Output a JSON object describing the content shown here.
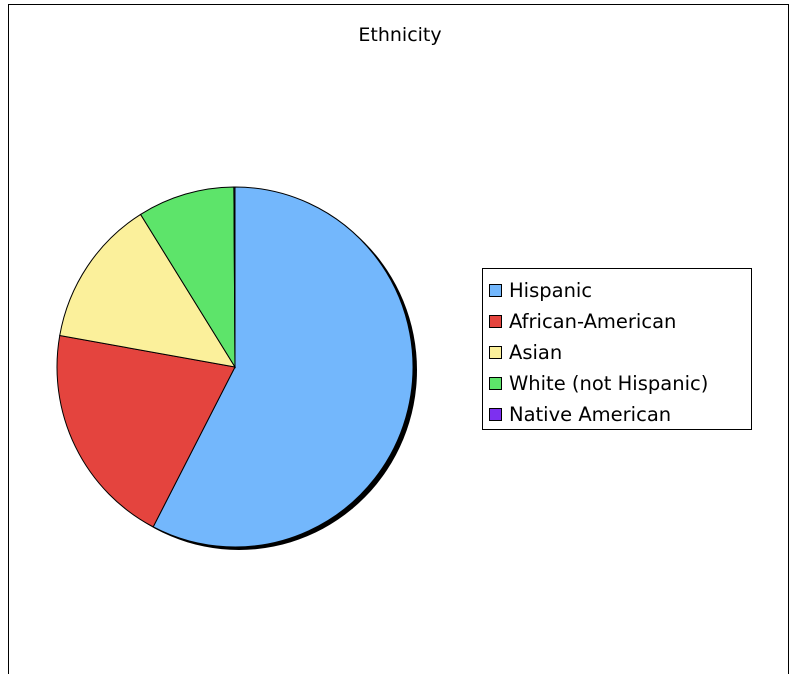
{
  "chart_data": {
    "type": "pie",
    "title": "Ethnicity",
    "categories": [
      "Hispanic",
      "African-American",
      "Asian",
      "White (not Hispanic)",
      "Native American"
    ],
    "values": [
      57.6,
      20.2,
      13.3,
      8.8,
      0.1
    ],
    "colors": [
      "#73b7fc",
      "#e4443e",
      "#fbf09b",
      "#5de46a",
      "#7d30f0"
    ],
    "legend_position": "right"
  }
}
